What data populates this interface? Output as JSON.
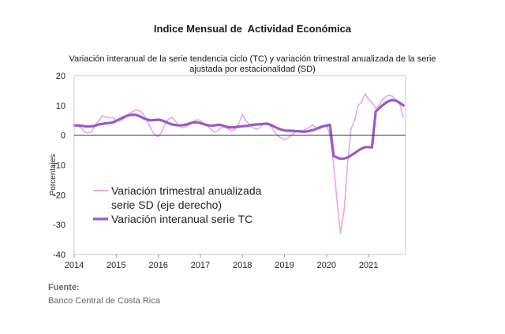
{
  "chart_data": {
    "type": "line",
    "title": "Indice Mensual de  Actividad Económica",
    "subtitle": [
      "Variación interanual de la serie tendencia ciclo (TC) y variación trimestral anualizada de la serie",
      "ajustada por estacionalidad (SD)"
    ],
    "ylabel": "Porcentajes",
    "ylim": [
      -40,
      20
    ],
    "yticks": [
      20,
      10,
      0,
      -10,
      -20,
      -30,
      -40
    ],
    "xlim": [
      2014,
      2021.88
    ],
    "xticks": [
      "2014",
      "2015",
      "2016",
      "2017",
      "2018",
      "2019",
      "2020",
      "2021"
    ],
    "grid": false,
    "legend_position": "center-left",
    "series": [
      {
        "name": "Variación trimestral anualizada serie SD (eje derecho)",
        "legend_lines": [
          "Variación trimestral anualizada",
          "serie SD (eje derecho)"
        ],
        "color": "#e6a6ec",
        "width": 1.6,
        "points": [
          [
            2014.0,
            3.2
          ],
          [
            2014.08,
            3.0
          ],
          [
            2014.17,
            2.5
          ],
          [
            2014.25,
            1.0
          ],
          [
            2014.33,
            0.8
          ],
          [
            2014.42,
            1.2
          ],
          [
            2014.5,
            3.5
          ],
          [
            2014.58,
            4.8
          ],
          [
            2014.67,
            6.5
          ],
          [
            2014.75,
            6.2
          ],
          [
            2014.83,
            5.8
          ],
          [
            2014.92,
            6.0
          ],
          [
            2015.0,
            5.0
          ],
          [
            2015.08,
            4.8
          ],
          [
            2015.17,
            5.5
          ],
          [
            2015.25,
            6.5
          ],
          [
            2015.33,
            7.5
          ],
          [
            2015.42,
            8.2
          ],
          [
            2015.5,
            8.5
          ],
          [
            2015.58,
            8.0
          ],
          [
            2015.67,
            6.5
          ],
          [
            2015.75,
            4.5
          ],
          [
            2015.83,
            2.0
          ],
          [
            2015.92,
            0.0
          ],
          [
            2016.0,
            -0.5
          ],
          [
            2016.08,
            1.0
          ],
          [
            2016.17,
            4.0
          ],
          [
            2016.25,
            5.5
          ],
          [
            2016.33,
            6.0
          ],
          [
            2016.42,
            4.5
          ],
          [
            2016.5,
            3.0
          ],
          [
            2016.58,
            2.5
          ],
          [
            2016.67,
            3.0
          ],
          [
            2016.75,
            3.5
          ],
          [
            2016.83,
            4.5
          ],
          [
            2016.92,
            5.2
          ],
          [
            2017.0,
            5.0
          ],
          [
            2017.08,
            4.0
          ],
          [
            2017.17,
            3.0
          ],
          [
            2017.25,
            2.0
          ],
          [
            2017.33,
            1.0
          ],
          [
            2017.42,
            1.5
          ],
          [
            2017.5,
            2.5
          ],
          [
            2017.58,
            3.0
          ],
          [
            2017.67,
            2.0
          ],
          [
            2017.75,
            1.5
          ],
          [
            2017.83,
            2.0
          ],
          [
            2017.92,
            4.0
          ],
          [
            2018.0,
            7.0
          ],
          [
            2018.08,
            5.0
          ],
          [
            2018.17,
            3.5
          ],
          [
            2018.25,
            2.5
          ],
          [
            2018.33,
            2.0
          ],
          [
            2018.42,
            2.5
          ],
          [
            2018.5,
            4.0
          ],
          [
            2018.58,
            4.0
          ],
          [
            2018.67,
            3.0
          ],
          [
            2018.75,
            1.5
          ],
          [
            2018.83,
            0.0
          ],
          [
            2018.92,
            -1.0
          ],
          [
            2019.0,
            -1.5
          ],
          [
            2019.08,
            -1.0
          ],
          [
            2019.17,
            0.0
          ],
          [
            2019.25,
            1.0
          ],
          [
            2019.33,
            1.5
          ],
          [
            2019.42,
            1.5
          ],
          [
            2019.5,
            2.0
          ],
          [
            2019.58,
            2.5
          ],
          [
            2019.67,
            3.5
          ],
          [
            2019.75,
            2.5
          ],
          [
            2019.83,
            2.0
          ],
          [
            2019.92,
            3.0
          ],
          [
            2020.0,
            3.5
          ],
          [
            2020.08,
            0.0
          ],
          [
            2020.17,
            -10.0
          ],
          [
            2020.25,
            -22.0
          ],
          [
            2020.33,
            -33.0
          ],
          [
            2020.42,
            -25.0
          ],
          [
            2020.5,
            -10.0
          ],
          [
            2020.58,
            2.0
          ],
          [
            2020.67,
            5.0
          ],
          [
            2020.75,
            10.0
          ],
          [
            2020.83,
            11.0
          ],
          [
            2020.92,
            14.0
          ],
          [
            2021.0,
            12.0
          ],
          [
            2021.08,
            11.0
          ],
          [
            2021.17,
            9.0
          ],
          [
            2021.25,
            10.0
          ],
          [
            2021.33,
            12.0
          ],
          [
            2021.42,
            13.0
          ],
          [
            2021.5,
            13.5
          ],
          [
            2021.58,
            13.0
          ],
          [
            2021.67,
            11.5
          ],
          [
            2021.75,
            10.0
          ],
          [
            2021.83,
            6.0
          ]
        ]
      },
      {
        "name": "Variación interanual serie TC",
        "legend_lines": [
          "Variación interanual serie TC"
        ],
        "color": "#9b59c6",
        "width": 3.2,
        "points": [
          [
            2014.0,
            3.3
          ],
          [
            2014.08,
            3.3
          ],
          [
            2014.17,
            3.2
          ],
          [
            2014.25,
            3.0
          ],
          [
            2014.33,
            2.9
          ],
          [
            2014.42,
            3.0
          ],
          [
            2014.5,
            3.2
          ],
          [
            2014.58,
            3.6
          ],
          [
            2014.67,
            3.8
          ],
          [
            2014.75,
            4.0
          ],
          [
            2014.83,
            4.1
          ],
          [
            2014.92,
            4.3
          ],
          [
            2015.0,
            4.8
          ],
          [
            2015.08,
            5.4
          ],
          [
            2015.17,
            6.0
          ],
          [
            2015.25,
            6.5
          ],
          [
            2015.33,
            6.8
          ],
          [
            2015.42,
            6.9
          ],
          [
            2015.5,
            6.7
          ],
          [
            2015.58,
            6.2
          ],
          [
            2015.67,
            5.6
          ],
          [
            2015.75,
            5.2
          ],
          [
            2015.83,
            5.0
          ],
          [
            2015.92,
            5.1
          ],
          [
            2016.0,
            5.2
          ],
          [
            2016.08,
            5.0
          ],
          [
            2016.17,
            4.5
          ],
          [
            2016.25,
            4.0
          ],
          [
            2016.33,
            3.6
          ],
          [
            2016.42,
            3.4
          ],
          [
            2016.5,
            3.3
          ],
          [
            2016.58,
            3.4
          ],
          [
            2016.67,
            3.6
          ],
          [
            2016.75,
            4.0
          ],
          [
            2016.83,
            4.3
          ],
          [
            2016.92,
            4.3
          ],
          [
            2017.0,
            4.1
          ],
          [
            2017.08,
            3.7
          ],
          [
            2017.17,
            3.4
          ],
          [
            2017.25,
            3.2
          ],
          [
            2017.33,
            3.3
          ],
          [
            2017.42,
            3.5
          ],
          [
            2017.5,
            3.4
          ],
          [
            2017.58,
            3.0
          ],
          [
            2017.67,
            2.7
          ],
          [
            2017.75,
            2.6
          ],
          [
            2017.83,
            2.7
          ],
          [
            2017.92,
            2.9
          ],
          [
            2018.0,
            3.0
          ],
          [
            2018.08,
            3.1
          ],
          [
            2018.17,
            3.3
          ],
          [
            2018.25,
            3.5
          ],
          [
            2018.33,
            3.6
          ],
          [
            2018.42,
            3.7
          ],
          [
            2018.5,
            3.8
          ],
          [
            2018.58,
            3.9
          ],
          [
            2018.67,
            3.5
          ],
          [
            2018.75,
            2.9
          ],
          [
            2018.83,
            2.4
          ],
          [
            2018.92,
            1.9
          ],
          [
            2019.0,
            1.6
          ],
          [
            2019.08,
            1.5
          ],
          [
            2019.17,
            1.5
          ],
          [
            2019.25,
            1.4
          ],
          [
            2019.33,
            1.3
          ],
          [
            2019.42,
            1.2
          ],
          [
            2019.5,
            1.2
          ],
          [
            2019.58,
            1.4
          ],
          [
            2019.67,
            1.7
          ],
          [
            2019.75,
            2.1
          ],
          [
            2019.83,
            2.6
          ],
          [
            2019.92,
            3.0
          ],
          [
            2020.0,
            3.2
          ],
          [
            2020.08,
            3.5
          ],
          [
            2020.17,
            -7.0
          ],
          [
            2020.25,
            -7.5
          ],
          [
            2020.33,
            -7.9
          ],
          [
            2020.42,
            -7.8
          ],
          [
            2020.5,
            -7.5
          ],
          [
            2020.58,
            -6.8
          ],
          [
            2020.67,
            -6.0
          ],
          [
            2020.75,
            -5.2
          ],
          [
            2020.83,
            -4.5
          ],
          [
            2020.92,
            -4.0
          ],
          [
            2021.0,
            -4.0
          ],
          [
            2021.08,
            -4.1
          ],
          [
            2021.17,
            8.0
          ],
          [
            2021.25,
            9.0
          ],
          [
            2021.33,
            10.0
          ],
          [
            2021.42,
            11.0
          ],
          [
            2021.5,
            11.6
          ],
          [
            2021.58,
            11.8
          ],
          [
            2021.67,
            11.5
          ],
          [
            2021.75,
            10.8
          ],
          [
            2021.83,
            10.0
          ]
        ]
      }
    ]
  },
  "source": {
    "label": "Fuente:",
    "text": "Banco Central de Costa Rica"
  }
}
